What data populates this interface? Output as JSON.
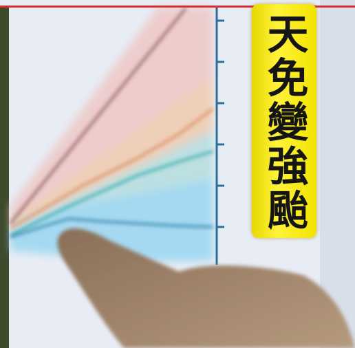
{
  "caption": "天免變強颱"
}
